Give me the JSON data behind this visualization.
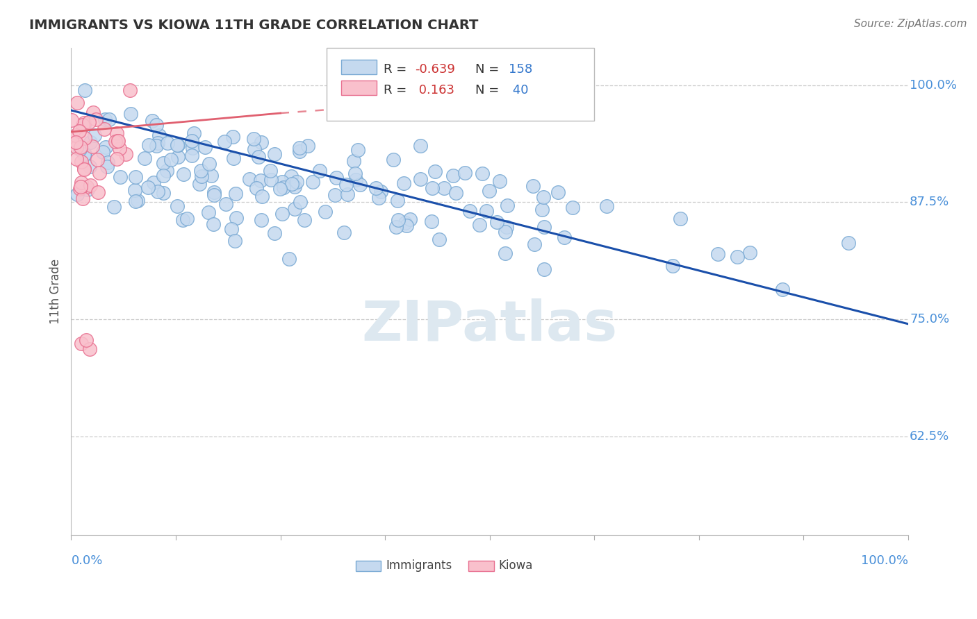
{
  "title": "IMMIGRANTS VS KIOWA 11TH GRADE CORRELATION CHART",
  "source": "Source: ZipAtlas.com",
  "ylabel": "11th Grade",
  "xmin": 0.0,
  "xmax": 1.0,
  "ymin": 0.52,
  "ymax": 1.04,
  "blue_R": -0.639,
  "blue_N": 158,
  "pink_R": 0.163,
  "pink_N": 40,
  "blue_color": "#c5d9ef",
  "blue_edge": "#7aaad4",
  "pink_color": "#f9c0cc",
  "pink_edge": "#e87090",
  "blue_line_color": "#1a4faa",
  "pink_line_color": "#e06070",
  "ytick_positions": [
    0.625,
    0.75,
    0.875,
    1.0
  ],
  "ytick_labels": [
    "62.5%",
    "75.0%",
    "87.5%",
    "100.0%"
  ],
  "watermark_color": "#dde8f0",
  "title_color": "#333333",
  "source_color": "#777777",
  "ylabel_color": "#555555",
  "tick_label_color": "#4a90d9",
  "legend_R_color": "#cc3333",
  "legend_N_color": "#3377cc"
}
